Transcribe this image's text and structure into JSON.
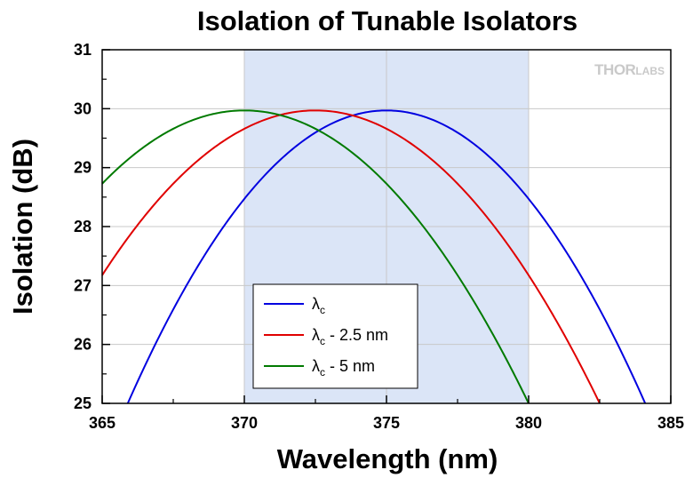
{
  "chart_data": {
    "type": "line",
    "title": "Isolation of Tunable Isolators",
    "xlabel": "Wavelength (nm)",
    "ylabel": "Isolation (dB)",
    "xlim": [
      365,
      385
    ],
    "ylim": [
      25,
      31
    ],
    "xticks": [
      "365",
      "370",
      "375",
      "380",
      "385"
    ],
    "yticks": [
      "25",
      "26",
      "27",
      "28",
      "29",
      "30",
      "31"
    ],
    "grid": true,
    "shaded_region": {
      "x_start": 370,
      "x_end": 380,
      "color": "#dbe5f7"
    },
    "legend": {
      "placement": "bottom-center"
    },
    "series": [
      {
        "name": "λc",
        "label_main": "λ",
        "label_sub": "c",
        "label_rest": "",
        "color": "#0000e0",
        "center": 375,
        "peak": 29.97,
        "x_at_25": 365.9
      },
      {
        "name": "λc - 2.5 nm",
        "label_main": "λ",
        "label_sub": "c",
        "label_rest": " - 2.5 nm",
        "color": "#e00000",
        "center": 372.5,
        "peak": 29.97,
        "x_at_25": 382.5
      },
      {
        "name": "λc - 5 nm",
        "label_main": "λ",
        "label_sub": "c",
        "label_rest": " - 5 nm",
        "color": "#007a00",
        "center": 370,
        "peak": 29.97,
        "x_at_25": 380.0
      }
    ]
  },
  "watermark": {
    "main": "THOR",
    "rest": "LABS"
  }
}
